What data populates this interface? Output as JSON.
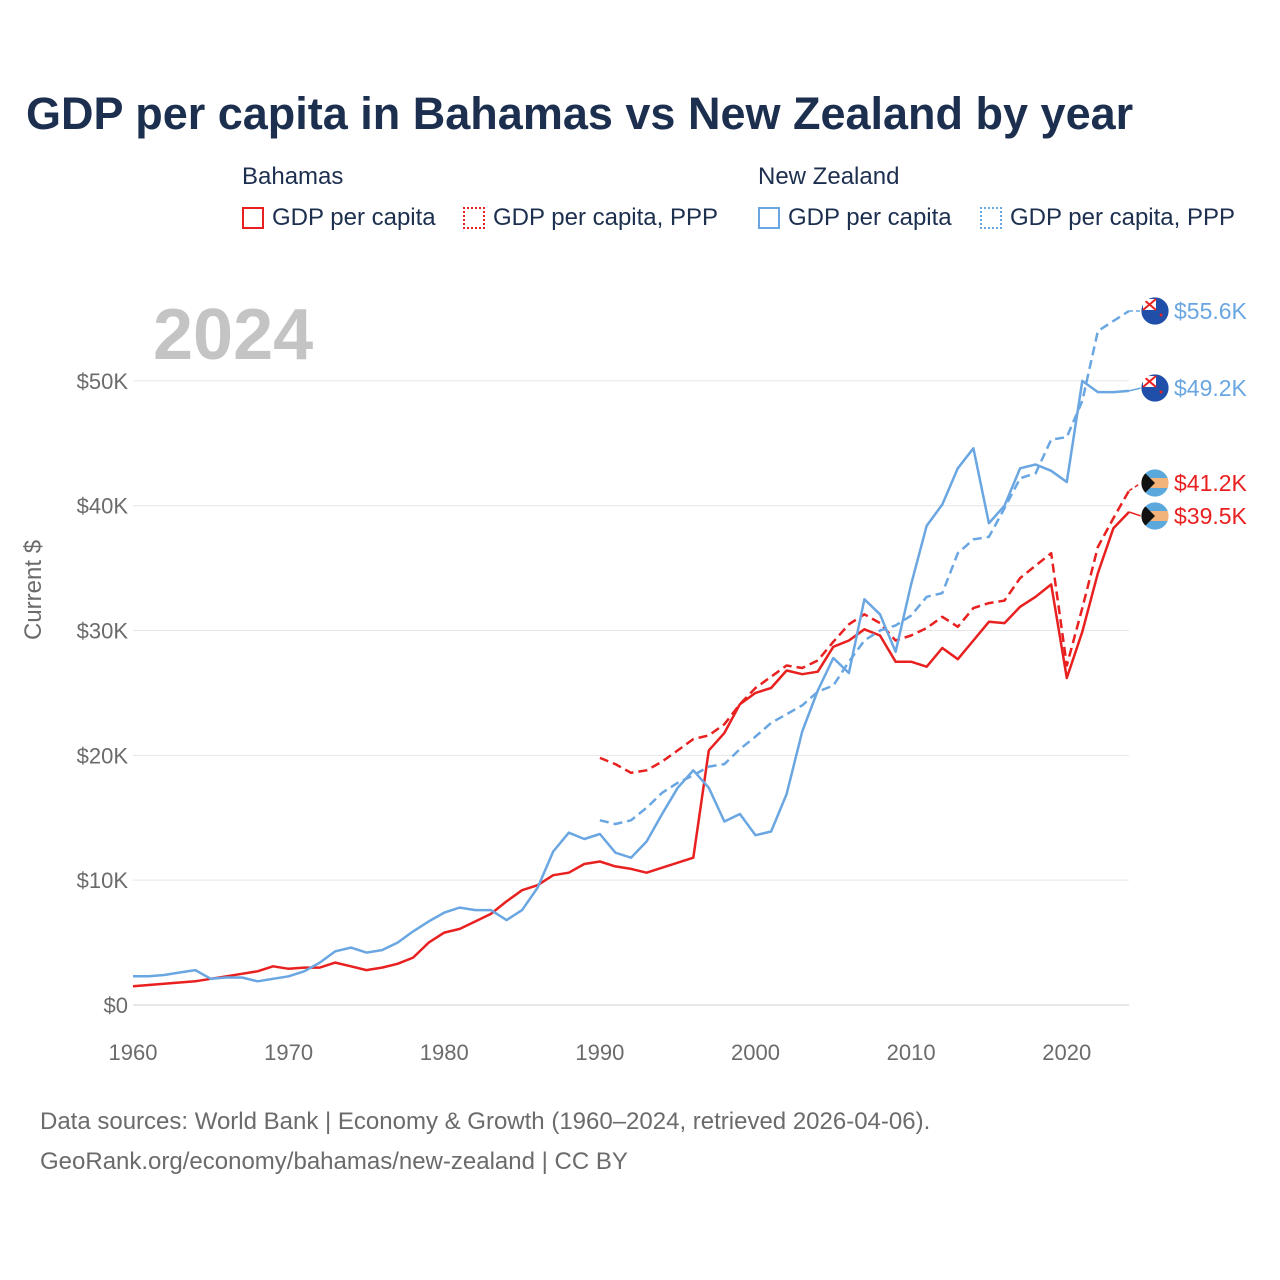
{
  "chart_data": {
    "type": "line",
    "title": "GDP per capita in Bahamas vs New Zealand by year",
    "year_badge": "2024",
    "xlabel": "",
    "ylabel": "Current $",
    "xlim": [
      1960,
      2024
    ],
    "ylim": [
      0,
      55600
    ],
    "x_ticks": [
      1960,
      1970,
      1980,
      1990,
      2000,
      2010,
      2020
    ],
    "y_ticks": [
      {
        "value": 0,
        "label": "$0"
      },
      {
        "value": 10000,
        "label": "$10K"
      },
      {
        "value": 20000,
        "label": "$20K"
      },
      {
        "value": 30000,
        "label": "$30K"
      },
      {
        "value": 40000,
        "label": "$40K"
      },
      {
        "value": 50000,
        "label": "$50K"
      }
    ],
    "legend": {
      "groups": [
        {
          "name": "Bahamas",
          "items": [
            "GDP per capita",
            "GDP per capita, PPP"
          ]
        },
        {
          "name": "New Zealand",
          "items": [
            "GDP per capita",
            "GDP per capita, PPP"
          ]
        }
      ]
    },
    "series": [
      {
        "name": "Bahamas GDP per capita",
        "country": "Bahamas",
        "color": "#e8201f",
        "dash": "solid",
        "end_label": "$39.5K",
        "end_value": 39500,
        "points": [
          [
            1960,
            1500
          ],
          [
            1961,
            1600
          ],
          [
            1962,
            1700
          ],
          [
            1963,
            1800
          ],
          [
            1964,
            1900
          ],
          [
            1965,
            2100
          ],
          [
            1966,
            2300
          ],
          [
            1967,
            2500
          ],
          [
            1968,
            2700
          ],
          [
            1969,
            3100
          ],
          [
            1970,
            2900
          ],
          [
            1971,
            3000
          ],
          [
            1972,
            3000
          ],
          [
            1973,
            3400
          ],
          [
            1974,
            3100
          ],
          [
            1975,
            2800
          ],
          [
            1976,
            3000
          ],
          [
            1977,
            3300
          ],
          [
            1978,
            3800
          ],
          [
            1979,
            5000
          ],
          [
            1980,
            5800
          ],
          [
            1981,
            6100
          ],
          [
            1982,
            6700
          ],
          [
            1983,
            7300
          ],
          [
            1984,
            8300
          ],
          [
            1985,
            9200
          ],
          [
            1986,
            9600
          ],
          [
            1987,
            10400
          ],
          [
            1988,
            10600
          ],
          [
            1989,
            11300
          ],
          [
            1990,
            11500
          ],
          [
            1991,
            11100
          ],
          [
            1992,
            10900
          ],
          [
            1993,
            10600
          ],
          [
            1994,
            11000
          ],
          [
            1995,
            11400
          ],
          [
            1996,
            11800
          ],
          [
            1997,
            20400
          ],
          [
            1998,
            21800
          ],
          [
            1999,
            24100
          ],
          [
            2000,
            25000
          ],
          [
            2001,
            25400
          ],
          [
            2002,
            26800
          ],
          [
            2003,
            26500
          ],
          [
            2004,
            26700
          ],
          [
            2005,
            28700
          ],
          [
            2006,
            29200
          ],
          [
            2007,
            30100
          ],
          [
            2008,
            29600
          ],
          [
            2009,
            27500
          ],
          [
            2010,
            27500
          ],
          [
            2011,
            27100
          ],
          [
            2012,
            28600
          ],
          [
            2013,
            27700
          ],
          [
            2014,
            29200
          ],
          [
            2015,
            30700
          ],
          [
            2016,
            30600
          ],
          [
            2017,
            31900
          ],
          [
            2018,
            32700
          ],
          [
            2019,
            33700
          ],
          [
            2020,
            26200
          ],
          [
            2021,
            29900
          ],
          [
            2022,
            34600
          ],
          [
            2023,
            38200
          ],
          [
            2024,
            39500
          ]
        ]
      },
      {
        "name": "Bahamas GDP per capita, PPP",
        "country": "Bahamas",
        "color": "#e8201f",
        "dash": "dashed",
        "end_label": "$41.2K",
        "end_value": 41200,
        "points": [
          [
            1990,
            19800
          ],
          [
            1991,
            19300
          ],
          [
            1992,
            18600
          ],
          [
            1993,
            18800
          ],
          [
            1994,
            19500
          ],
          [
            1995,
            20400
          ],
          [
            1996,
            21300
          ],
          [
            1997,
            21600
          ],
          [
            1998,
            22500
          ],
          [
            1999,
            24100
          ],
          [
            2000,
            25400
          ],
          [
            2001,
            26300
          ],
          [
            2002,
            27200
          ],
          [
            2003,
            27000
          ],
          [
            2004,
            27600
          ],
          [
            2005,
            29100
          ],
          [
            2006,
            30500
          ],
          [
            2007,
            31300
          ],
          [
            2008,
            30600
          ],
          [
            2009,
            29200
          ],
          [
            2010,
            29600
          ],
          [
            2011,
            30200
          ],
          [
            2012,
            31100
          ],
          [
            2013,
            30300
          ],
          [
            2014,
            31800
          ],
          [
            2015,
            32200
          ],
          [
            2016,
            32400
          ],
          [
            2017,
            34200
          ],
          [
            2018,
            35200
          ],
          [
            2019,
            36200
          ],
          [
            2020,
            27200
          ],
          [
            2021,
            31800
          ],
          [
            2022,
            36700
          ],
          [
            2023,
            39000
          ],
          [
            2024,
            41200
          ]
        ]
      },
      {
        "name": "New Zealand GDP per capita",
        "country": "New Zealand",
        "color": "#6aa6e1",
        "dash": "solid",
        "end_label": "$49.2K",
        "end_value": 49200,
        "points": [
          [
            1960,
            2300
          ],
          [
            1961,
            2300
          ],
          [
            1962,
            2400
          ],
          [
            1963,
            2600
          ],
          [
            1964,
            2800
          ],
          [
            1965,
            2100
          ],
          [
            1966,
            2200
          ],
          [
            1967,
            2200
          ],
          [
            1968,
            1900
          ],
          [
            1969,
            2100
          ],
          [
            1970,
            2300
          ],
          [
            1971,
            2700
          ],
          [
            1972,
            3400
          ],
          [
            1973,
            4300
          ],
          [
            1974,
            4600
          ],
          [
            1975,
            4200
          ],
          [
            1976,
            4400
          ],
          [
            1977,
            5000
          ],
          [
            1978,
            5900
          ],
          [
            1979,
            6700
          ],
          [
            1980,
            7400
          ],
          [
            1981,
            7800
          ],
          [
            1982,
            7600
          ],
          [
            1983,
            7600
          ],
          [
            1984,
            6800
          ],
          [
            1985,
            7600
          ],
          [
            1986,
            9400
          ],
          [
            1987,
            12300
          ],
          [
            1988,
            13800
          ],
          [
            1989,
            13300
          ],
          [
            1990,
            13700
          ],
          [
            1991,
            12200
          ],
          [
            1992,
            11800
          ],
          [
            1993,
            13100
          ],
          [
            1994,
            15300
          ],
          [
            1995,
            17400
          ],
          [
            1996,
            18800
          ],
          [
            1997,
            17400
          ],
          [
            1998,
            14700
          ],
          [
            1999,
            15300
          ],
          [
            2000,
            13600
          ],
          [
            2001,
            13900
          ],
          [
            2002,
            16900
          ],
          [
            2003,
            21900
          ],
          [
            2004,
            25200
          ],
          [
            2005,
            27800
          ],
          [
            2006,
            26600
          ],
          [
            2007,
            32500
          ],
          [
            2008,
            31300
          ],
          [
            2009,
            28300
          ],
          [
            2010,
            33700
          ],
          [
            2011,
            38400
          ],
          [
            2012,
            40100
          ],
          [
            2013,
            43000
          ],
          [
            2014,
            44600
          ],
          [
            2015,
            38600
          ],
          [
            2016,
            40000
          ],
          [
            2017,
            43000
          ],
          [
            2018,
            43300
          ],
          [
            2019,
            42800
          ],
          [
            2020,
            41900
          ],
          [
            2021,
            50000
          ],
          [
            2022,
            49100
          ],
          [
            2023,
            49100
          ],
          [
            2024,
            49200
          ]
        ]
      },
      {
        "name": "New Zealand GDP per capita, PPP",
        "country": "New Zealand",
        "color": "#6aa6e1",
        "dash": "dashed",
        "end_label": "$55.6K",
        "end_value": 55600,
        "points": [
          [
            1990,
            14800
          ],
          [
            1991,
            14500
          ],
          [
            1992,
            14800
          ],
          [
            1993,
            15800
          ],
          [
            1994,
            17000
          ],
          [
            1995,
            17800
          ],
          [
            1996,
            18400
          ],
          [
            1997,
            19100
          ],
          [
            1998,
            19300
          ],
          [
            1999,
            20500
          ],
          [
            2000,
            21500
          ],
          [
            2001,
            22600
          ],
          [
            2002,
            23300
          ],
          [
            2003,
            24000
          ],
          [
            2004,
            25100
          ],
          [
            2005,
            25600
          ],
          [
            2006,
            27500
          ],
          [
            2007,
            29200
          ],
          [
            2008,
            30000
          ],
          [
            2009,
            30400
          ],
          [
            2010,
            31200
          ],
          [
            2011,
            32700
          ],
          [
            2012,
            33000
          ],
          [
            2013,
            36200
          ],
          [
            2014,
            37300
          ],
          [
            2015,
            37500
          ],
          [
            2016,
            39800
          ],
          [
            2017,
            42200
          ],
          [
            2018,
            42600
          ],
          [
            2019,
            45300
          ],
          [
            2020,
            45500
          ],
          [
            2021,
            48400
          ],
          [
            2022,
            54000
          ],
          [
            2023,
            54800
          ],
          [
            2024,
            55600
          ]
        ]
      }
    ]
  },
  "footer": {
    "line1": "Data sources: World Bank | Economy & Growth (1960–2024, retrieved 2026-04-06).",
    "line2": "GeoRank.org/economy/bahamas/new-zealand | CC BY"
  },
  "flags": {
    "bahamas": "bahamas-flag-icon",
    "new_zealand": "new-zealand-flag-icon"
  }
}
